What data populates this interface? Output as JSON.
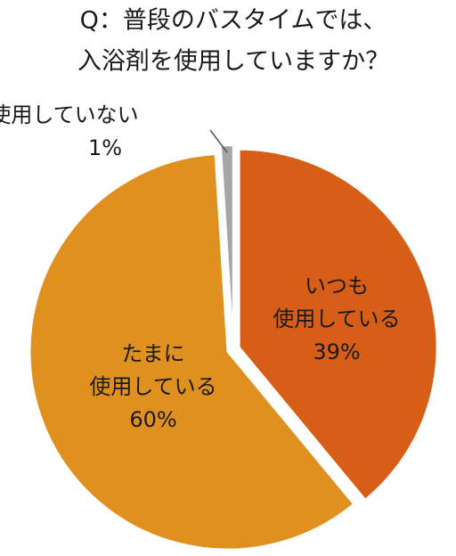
{
  "chart_data": {
    "type": "pie",
    "title": [
      "Q：普段のバスタイムでは、",
      "入浴剤を使用していますか？"
    ],
    "categories": [
      [
        "いつも",
        "使用している"
      ],
      [
        "たまに",
        "使用している"
      ],
      [
        "使用していない"
      ]
    ],
    "values": [
      39,
      60,
      1
    ],
    "value_labels": [
      "39%",
      "60%",
      "1%"
    ],
    "colors": [
      "#d65e17",
      "#e0901f",
      "#a6a6a6"
    ]
  }
}
